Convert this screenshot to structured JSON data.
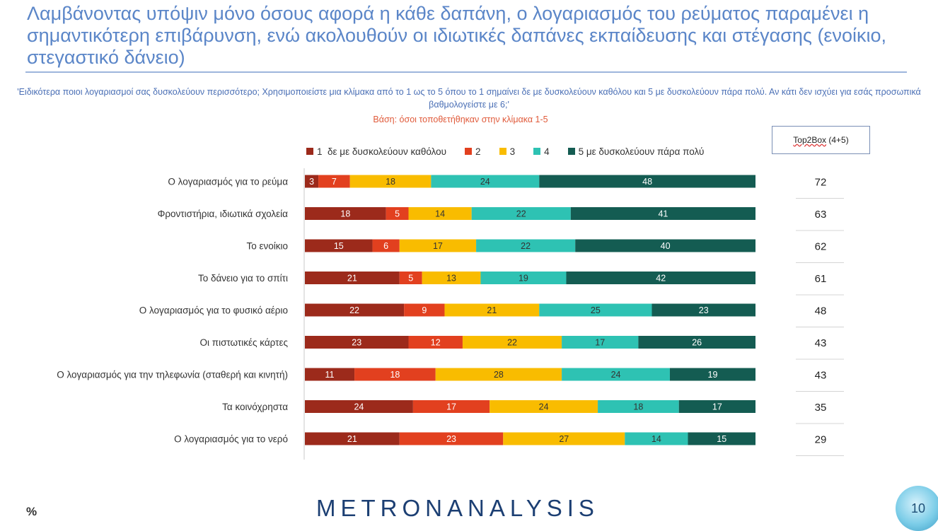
{
  "header": {
    "title": "Λαμβάνοντας υπόψιν μόνο όσους αφορά η κάθε δαπάνη, ο λογαριασμός του ρεύματος παραμένει η σημαντικότερη επιβάρυνση, ενώ ακολουθούν οι ιδιωτικές δαπάνες εκπαίδευσης και στέγασης (ενοίκιο, στεγαστικό δάνειο)",
    "question": "'Ειδικότερα ποιοι λογαριασμοί σας δυσκολεύουν περισσότερο; Χρησιμοποιείστε μια κλίμακα από το 1 ως το 5 όπου το 1 σημαίνει δε με δυσκολεύουν καθόλου και 5 με δυσκολεύουν πάρα πολύ. Αν κάτι δεν ισχύει για εσάς προσωπικά βαθμολογείστε με 6;'",
    "base": "Βάση: όσοι τοποθετήθηκαν στην κλίμακα 1-5"
  },
  "top2box": {
    "header_word": "Top2Box",
    "header_suffix": "(4+5)"
  },
  "footer": {
    "logo": "METRONANALYSIS",
    "percent_icon": "%",
    "page_number": "10"
  },
  "chart_data": {
    "type": "bar",
    "orientation": "horizontal",
    "stacked": true,
    "percent": true,
    "xlim": [
      0,
      100
    ],
    "categories": [
      "Ο λογαριασμός για το ρεύμα",
      "Φροντιστήρια, ιδιωτικά σχολεία",
      "Το ενοίκιο",
      "Το δάνειο για το σπίτι",
      "Ο λογαριασμός για το φυσικό αέριο",
      "Οι πιστωτικές κάρτες",
      "Ο λογαριασμός για την τηλεφωνία (σταθερή και κινητή)",
      "Τα κοινόχρηστα",
      "Ο λογαριασμός για το νερό"
    ],
    "series": [
      {
        "name": "1  δε με δυσκολεύουν καθόλου",
        "color": "#9c2a1b",
        "values": [
          3,
          18,
          15,
          21,
          22,
          23,
          11,
          24,
          21
        ]
      },
      {
        "name": "2",
        "color": "#e2401f",
        "values": [
          7,
          5,
          6,
          5,
          9,
          12,
          18,
          17,
          23
        ]
      },
      {
        "name": "3",
        "color": "#f9bc00",
        "values": [
          18,
          14,
          17,
          13,
          21,
          22,
          28,
          24,
          27
        ]
      },
      {
        "name": "4",
        "color": "#2ec2b3",
        "values": [
          24,
          22,
          22,
          19,
          25,
          17,
          24,
          18,
          14
        ]
      },
      {
        "name": "5 με δυσκολεύουν πάρα πολύ",
        "color": "#145c52",
        "values": [
          48,
          41,
          40,
          42,
          23,
          26,
          19,
          17,
          15
        ]
      }
    ],
    "top2box": [
      72,
      63,
      62,
      61,
      48,
      43,
      43,
      35,
      29
    ],
    "legend": {
      "position": "top"
    },
    "grid": false
  }
}
